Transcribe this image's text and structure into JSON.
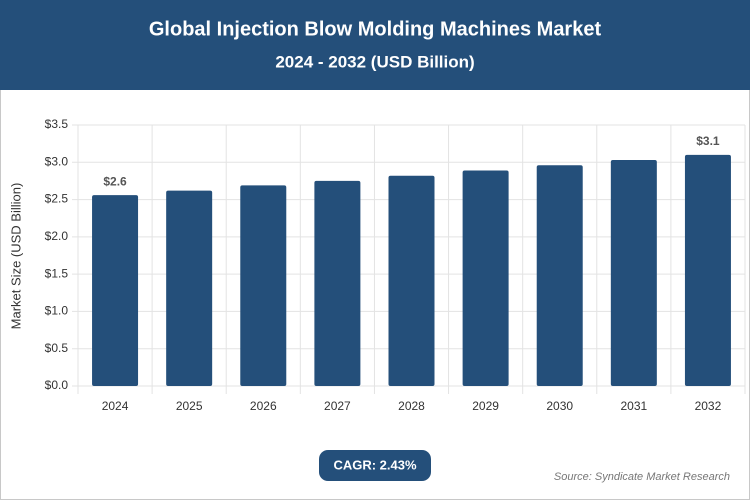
{
  "chart_data": {
    "type": "bar",
    "title": "Global Injection Blow Molding Machines Market",
    "subtitle": "2024 - 2032 (USD Billion)",
    "y_label": "Market Size (USD Billion)",
    "categories": [
      "2024",
      "2025",
      "2026",
      "2027",
      "2028",
      "2029",
      "2030",
      "2031",
      "2032"
    ],
    "values": [
      2.56,
      2.62,
      2.69,
      2.75,
      2.82,
      2.89,
      2.96,
      3.03,
      3.1
    ],
    "value_labels": [
      "$2.6",
      null,
      null,
      null,
      null,
      null,
      null,
      null,
      "$3.1"
    ],
    "color": "#244f7a",
    "ylim": [
      0,
      3.5
    ],
    "yticks": [
      {
        "value": 0,
        "label": "$0.0"
      },
      {
        "value": 0.5,
        "label": "$0.5"
      },
      {
        "value": 1,
        "label": "$1.0"
      },
      {
        "value": 1.5,
        "label": "$1.5"
      },
      {
        "value": 2,
        "label": "$2.0"
      },
      {
        "value": 2.5,
        "label": "$2.5"
      },
      {
        "value": 3,
        "label": "$3.0"
      },
      {
        "value": 3.5,
        "label": "$3.5"
      }
    ],
    "grid": true,
    "annotation": "CAGR: 2.43%",
    "source": "Source: Syndicate Market Research"
  }
}
